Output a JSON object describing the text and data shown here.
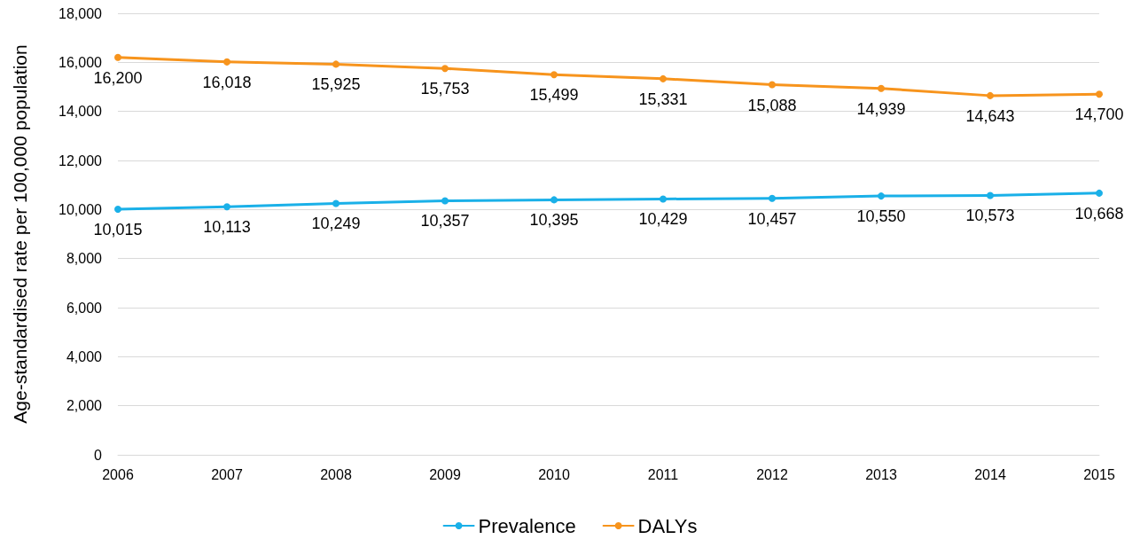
{
  "chart_data": {
    "type": "line",
    "ylabel": "Age-standardised rate per 100,000 population",
    "categories": [
      "2006",
      "2007",
      "2008",
      "2009",
      "2010",
      "2011",
      "2012",
      "2013",
      "2014",
      "2015"
    ],
    "series": [
      {
        "name": "Prevalence",
        "color": "#1ab0e8",
        "values": [
          10015,
          10113,
          10249,
          10357,
          10395,
          10429,
          10457,
          10550,
          10573,
          10668
        ],
        "value_labels": [
          "10,015",
          "10,113",
          "10,249",
          "10,357",
          "10,395",
          "10,429",
          "10,457",
          "10,550",
          "10,573",
          "10,668"
        ]
      },
      {
        "name": "DALYs",
        "color": "#f7941d",
        "values": [
          16200,
          16018,
          15925,
          15753,
          15499,
          15331,
          15088,
          14939,
          14643,
          14700
        ],
        "value_labels": [
          "16,200",
          "16,018",
          "15,925",
          "15,753",
          "15,499",
          "15,331",
          "15,088",
          "14,939",
          "14,643",
          "14,700"
        ]
      }
    ],
    "ylim": [
      0,
      18000
    ],
    "yticks": [
      0,
      {
        "value": 2000,
        "label": "2,000"
      },
      {
        "value": 4000,
        "label": "4,000"
      },
      {
        "value": 6000,
        "label": "6,000"
      },
      {
        "value": 8000,
        "label": "8,000"
      },
      {
        "value": 10000,
        "label": "10,000"
      },
      {
        "value": 12000,
        "label": "12,000"
      },
      {
        "value": 14000,
        "label": "14,000"
      },
      {
        "value": 16000,
        "label": "16,000"
      },
      {
        "value": 18000,
        "label": "18,000"
      }
    ],
    "grid": "y",
    "legend": "bottom",
    "marker": "circle"
  }
}
